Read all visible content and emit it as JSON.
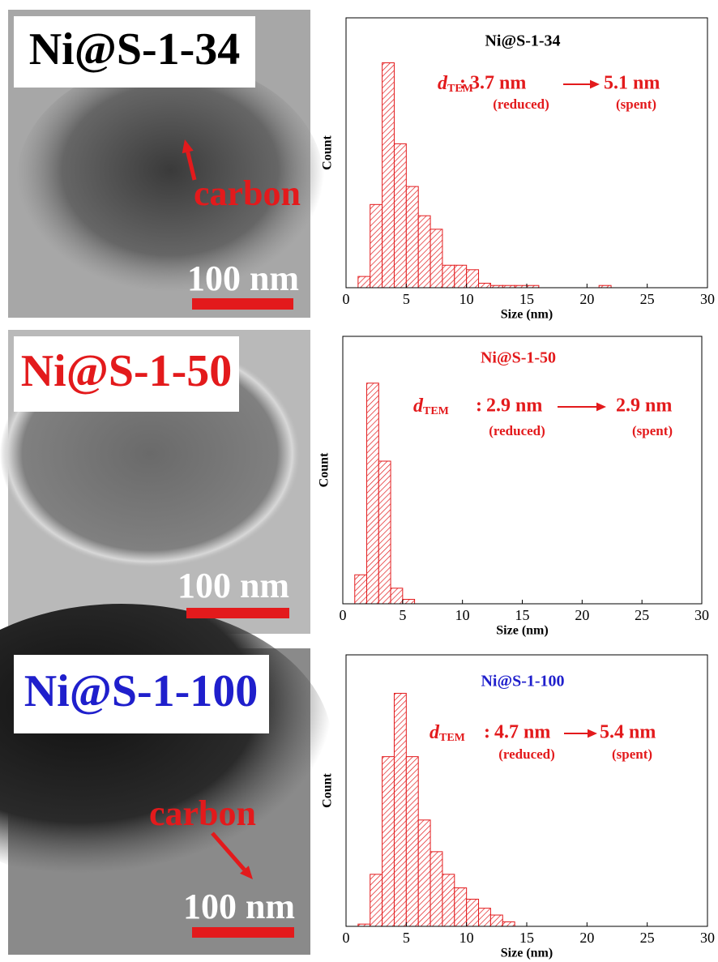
{
  "images": [
    {
      "label": "Ni@S-1-34",
      "label_color": "#000000",
      "annotation": "carbon",
      "scale_bar": "100 nm"
    },
    {
      "label": "Ni@S-1-50",
      "label_color": "#e31a1c",
      "scale_bar": "100 nm"
    },
    {
      "label": "Ni@S-1-100",
      "label_color": "#1f1fcc",
      "annotation": "carbon",
      "scale_bar": "100 nm"
    }
  ],
  "chart_data": [
    {
      "type": "histogram",
      "title": "Ni@S-1-34",
      "title_color": "#000000",
      "x_label": "Size (nm)",
      "y_label": "Count",
      "color": "#e31a1c",
      "bins": [
        1,
        2,
        3,
        4,
        5,
        6,
        7,
        8,
        9,
        10,
        11,
        12,
        13,
        14,
        15,
        16,
        17,
        18,
        19,
        20,
        21,
        22
      ],
      "values": [
        5,
        37,
        100,
        64,
        45,
        32,
        26,
        10,
        10,
        8,
        2,
        1,
        1,
        1,
        1,
        0,
        0,
        0,
        0,
        0,
        1
      ],
      "xlim": [
        0,
        30
      ],
      "xticks": [
        0,
        5,
        10,
        15,
        20,
        25,
        30
      ],
      "ylim": [
        0,
        120
      ],
      "annotation": {
        "d": "d",
        "subscript": "TEM",
        "separator": ":",
        "reduced_value": "3.7 nm",
        "spent_value": "5.1 nm",
        "reduced_label": "(reduced)",
        "spent_label": "(spent)"
      }
    },
    {
      "type": "histogram",
      "title": "Ni@S-1-50",
      "title_color": "#e31a1c",
      "x_label": "Size (nm)",
      "y_label": "Count",
      "color": "#e31a1c",
      "bins": [
        1,
        2,
        3,
        4,
        5,
        6
      ],
      "values": [
        13,
        99,
        64,
        7,
        2
      ],
      "xlim": [
        0,
        30
      ],
      "xticks": [
        0,
        5,
        10,
        15,
        20,
        25,
        30
      ],
      "ylim": [
        0,
        120
      ],
      "annotation": {
        "d": "d",
        "subscript": "TEM",
        "separator": ":",
        "reduced_value": "2.9 nm",
        "spent_value": "2.9 nm",
        "reduced_label": "(reduced)",
        "spent_label": "(spent)"
      }
    },
    {
      "type": "histogram",
      "title": "Ni@S-1-100",
      "title_color": "#1f1fcc",
      "x_label": "Size (nm)",
      "y_label": "Count",
      "color": "#e31a1c",
      "bins": [
        1,
        2,
        3,
        4,
        5,
        6,
        7,
        8,
        9,
        10,
        11,
        12,
        13,
        14
      ],
      "values": [
        1,
        23,
        75,
        103,
        75,
        47,
        33,
        23,
        17,
        12,
        8,
        5,
        2
      ],
      "xlim": [
        0,
        30
      ],
      "xticks": [
        0,
        5,
        10,
        15,
        20,
        25,
        30
      ],
      "ylim": [
        0,
        120
      ],
      "annotation": {
        "d": "d",
        "subscript": "TEM",
        "separator": ":",
        "reduced_value": "4.7 nm",
        "spent_value": "5.4 nm",
        "reduced_label": "(reduced)",
        "spent_label": "(spent)"
      }
    }
  ]
}
